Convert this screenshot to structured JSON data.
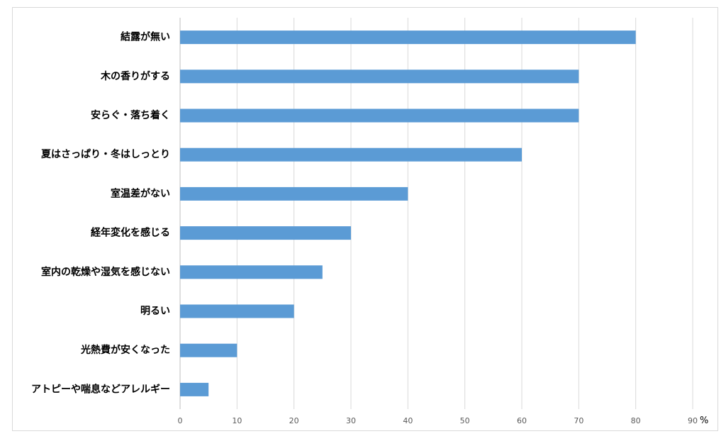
{
  "chart_data": {
    "type": "bar",
    "orientation": "horizontal",
    "categories": [
      "結露が無い",
      "木の香りがする",
      "安らぐ・落ち着く",
      "夏はさっぱり・冬はしっとり",
      "室温差がない",
      "経年変化を感じる",
      "室内の乾燥や湿気を感じない",
      "明るい",
      "光熱費が安くなった",
      "アトピーや喘息などアレルギー"
    ],
    "values": [
      80,
      70,
      70,
      60,
      40,
      30,
      25,
      20,
      10,
      5
    ],
    "xlim": [
      0,
      90
    ],
    "xticks": [
      0,
      10,
      20,
      30,
      40,
      50,
      60,
      70,
      80,
      90
    ],
    "xunit": "%",
    "grid": true,
    "colors": {
      "bar": "#5b9bd5",
      "grid": "#d9d9d9",
      "axis": "#bfbfbf"
    }
  }
}
